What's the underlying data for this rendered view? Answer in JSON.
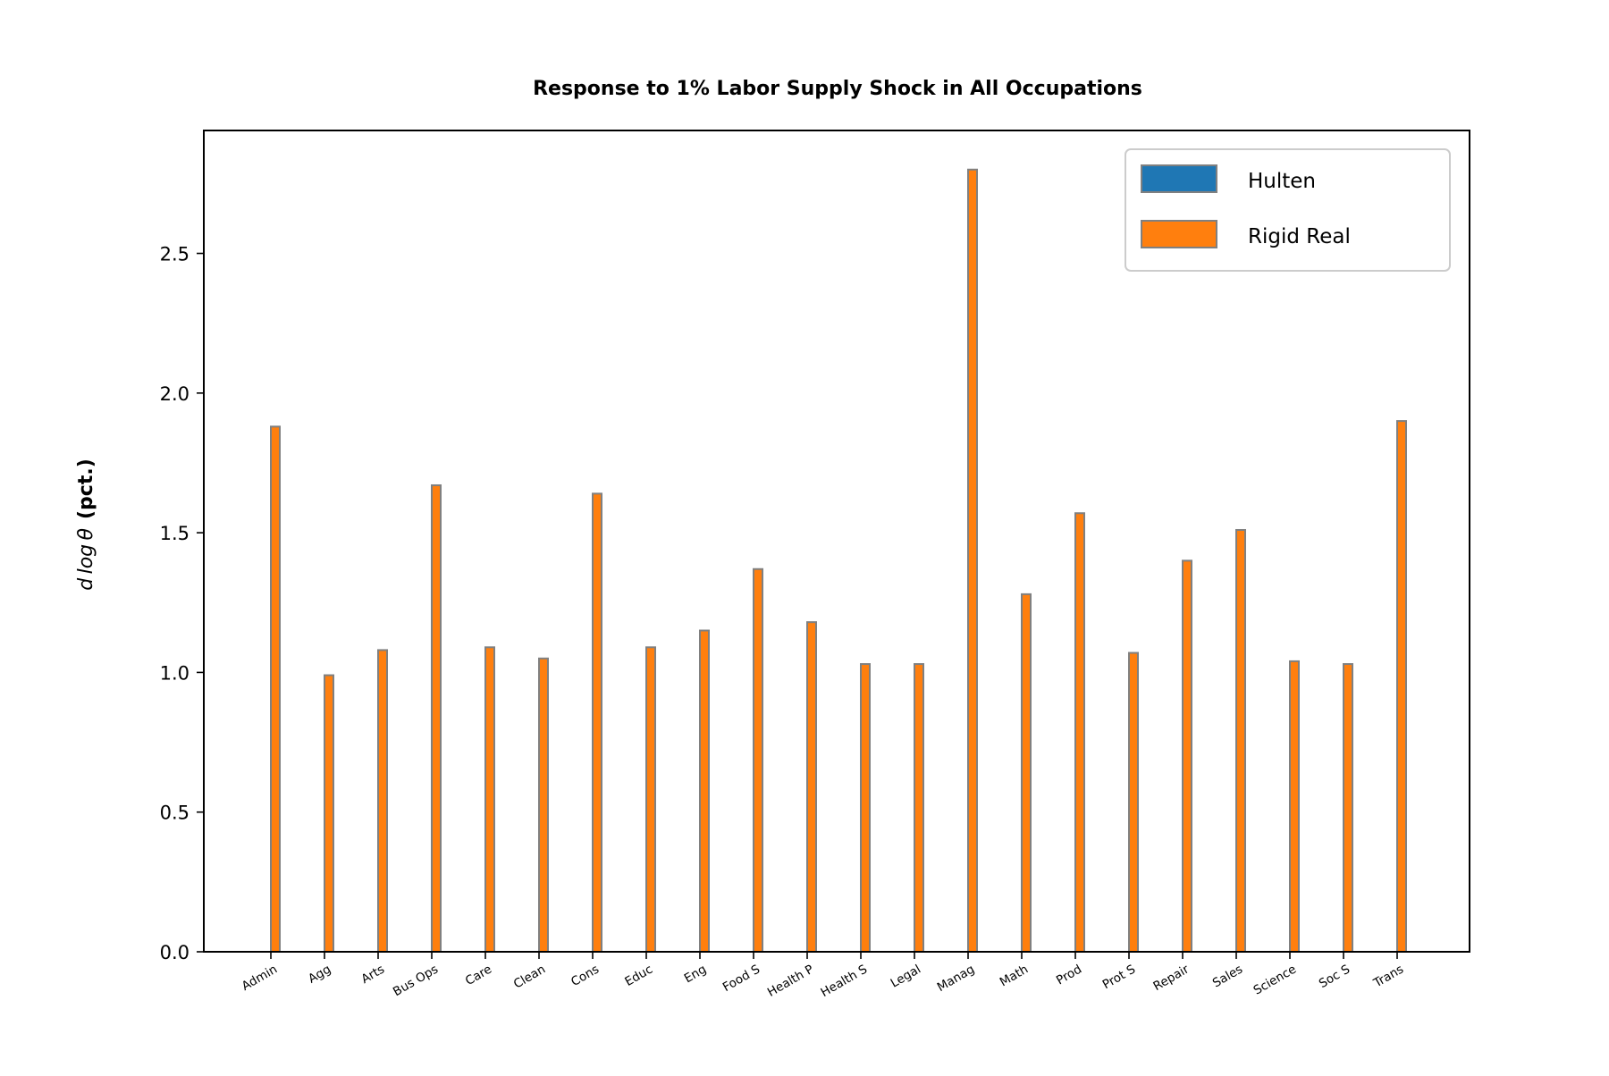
{
  "chart_data": {
    "type": "bar",
    "title": "Response to 1% Labor Supply Shock in All Occupations",
    "ylabel": {
      "math": "d log θ",
      "bold": "(pct.)"
    },
    "xlabel": "",
    "ylim": [
      0,
      2.94
    ],
    "yticks": [
      0.0,
      0.5,
      1.0,
      1.5,
      2.0,
      2.5
    ],
    "ytick_labels": [
      "0.0",
      "0.5",
      "1.0",
      "1.5",
      "2.0",
      "2.5"
    ],
    "categories": [
      "Admin",
      "Agg",
      "Arts",
      "Bus Ops",
      "Care",
      "Clean",
      "Cons",
      "Educ",
      "Eng",
      "Food S",
      "Health P",
      "Health S",
      "Legal",
      "Manag",
      "Math",
      "Prod",
      "Prot S",
      "Repair",
      "Sales",
      "Science",
      "Soc S",
      "Trans"
    ],
    "series": [
      {
        "name": "Hulten",
        "color": "#1f77b4",
        "values": [
          0,
          0,
          0,
          0,
          0,
          0,
          0,
          0,
          0,
          0,
          0,
          0,
          0,
          0,
          0,
          0,
          0,
          0,
          0,
          0,
          0,
          0
        ]
      },
      {
        "name": "Rigid Real",
        "color": "#ff7f0e",
        "values": [
          1.88,
          0.99,
          1.08,
          1.67,
          1.09,
          1.05,
          1.64,
          1.09,
          1.15,
          1.37,
          1.18,
          1.03,
          1.03,
          2.8,
          1.28,
          1.57,
          1.07,
          1.4,
          1.51,
          1.04,
          1.03,
          1.9
        ]
      }
    ],
    "edge_color": "#808080",
    "grid": false,
    "legend_position": "top-right"
  }
}
